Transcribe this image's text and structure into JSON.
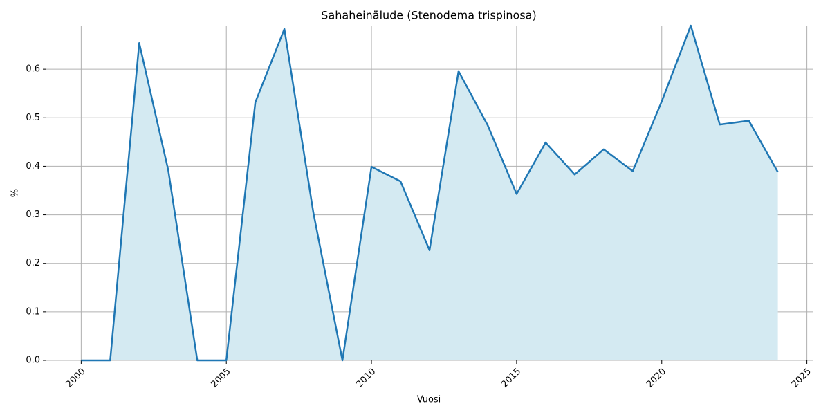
{
  "chart_data": {
    "type": "line",
    "title": "Sahaheinälude (Stenodema trispinosa)",
    "x_label": "Vuosi",
    "y_label": "%",
    "x": [
      2000,
      2001,
      2002,
      2003,
      2004,
      2005,
      2006,
      2007,
      2008,
      2009,
      2010,
      2011,
      2012,
      2013,
      2014,
      2015,
      2016,
      2017,
      2018,
      2019,
      2020,
      2021,
      2022,
      2023,
      2024
    ],
    "series": [
      {
        "color": "#1f77b4",
        "fill_color": "#d4eaf2",
        "values": [
          0,
          0,
          0.654,
          0.392,
          0,
          0,
          0.532,
          0.683,
          0.304,
          0,
          0.399,
          0.369,
          0.227,
          0.596,
          0.485,
          0.343,
          0.449,
          0.383,
          0.435,
          0.39,
          0.534,
          0.69,
          0.486,
          0.494,
          0.388
        ]
      }
    ],
    "xlim": [
      1998.8,
      2025.2
    ],
    "xticks": [
      2000,
      2005,
      2010,
      2015,
      2020,
      2025
    ],
    "ylim": [
      0,
      0.69
    ],
    "yticks": [
      {
        "value": 0,
        "label": "0.0"
      },
      0.1,
      0.2,
      0.3,
      0.4,
      0.5,
      0.6
    ],
    "grid": true
  }
}
